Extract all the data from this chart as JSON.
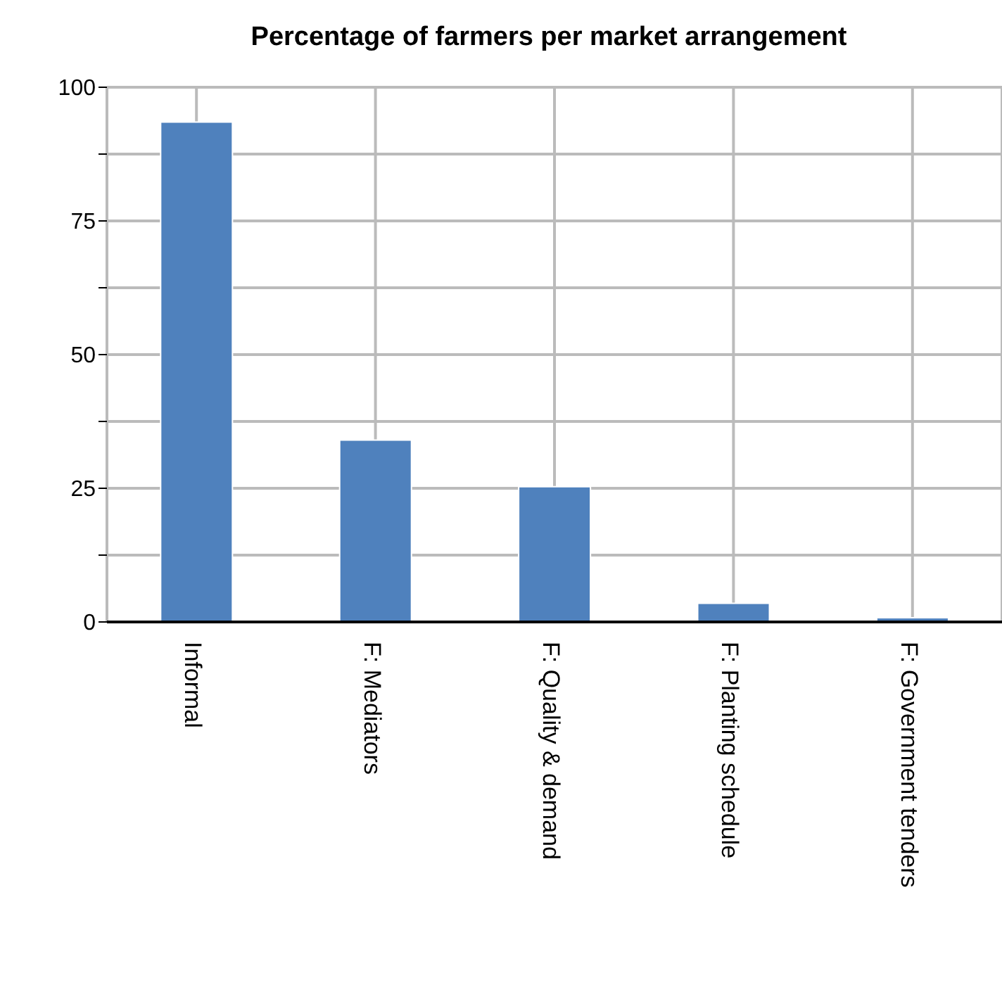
{
  "chart_data": {
    "type": "bar",
    "title": "Percentage of farmers per market arrangement",
    "categories": [
      "Informal",
      "F: Mediators",
      "F: Quality & demand",
      "F: Planting schedule",
      "F: Government tenders"
    ],
    "values": [
      93.5,
      34,
      25.3,
      3.5,
      0.8
    ],
    "color": "#4f81bd",
    "ylim": [
      0,
      100
    ],
    "yticks": [
      0,
      {
        "value": 12.5,
        "label": null
      },
      25,
      {
        "value": 37.5,
        "label": null
      },
      50,
      {
        "value": 62.5,
        "label": null
      },
      75,
      {
        "value": 87.5,
        "label": null
      },
      100
    ],
    "grid": true
  }
}
